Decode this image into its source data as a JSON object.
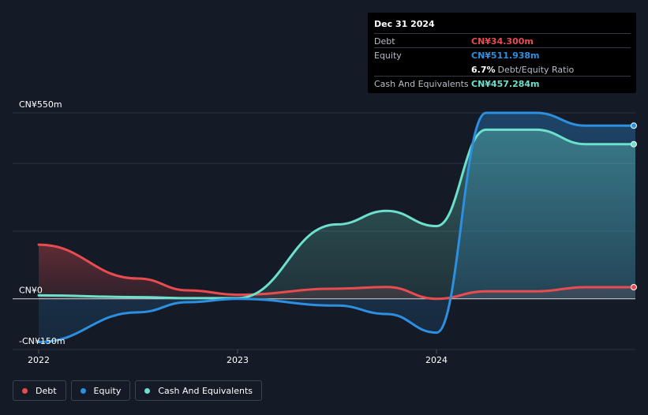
{
  "colors": {
    "background": "#151b26",
    "debt": "#e84c50",
    "equity": "#2d8fe0",
    "cash": "#6ce0cc",
    "grid": "#2a313d",
    "zero": "#ffffff"
  },
  "tooltip": {
    "date": "Dec 31 2024",
    "rows": [
      {
        "label": "Debt",
        "value": "CN¥34.300m",
        "color": "#e84c50"
      },
      {
        "label": "Equity",
        "value": "CN¥511.938m",
        "color": "#2d8fe0"
      },
      {
        "label": "",
        "value": "6.7%",
        "suffix": "Debt/Equity Ratio",
        "color": "#ffffff"
      },
      {
        "label": "Cash And Equivalents",
        "value": "CN¥457.284m",
        "color": "#6ce0cc"
      }
    ]
  },
  "legend": [
    {
      "label": "Debt",
      "color": "#e84c50"
    },
    {
      "label": "Equity",
      "color": "#2d8fe0"
    },
    {
      "label": "Cash And Equivalents",
      "color": "#6ce0cc"
    }
  ],
  "chart_data": {
    "type": "area",
    "ylim": [
      -150,
      550
    ],
    "y_tick_labels": [
      {
        "value": 550,
        "label": "CN¥550m"
      },
      {
        "value": 0,
        "label": "CN¥0"
      },
      {
        "value": -150,
        "label": "-CN¥150m"
      }
    ],
    "x_ticks": [
      {
        "value": 2022.0,
        "label": "2022"
      },
      {
        "value": 2023.0,
        "label": "2023"
      },
      {
        "value": 2024.0,
        "label": "2024"
      }
    ],
    "xlim": [
      2021.9,
      2025.0
    ],
    "grid": true,
    "legend_position": "bottom-left",
    "series": [
      {
        "name": "Debt",
        "key": "debt",
        "points": [
          [
            2022.0,
            160
          ],
          [
            2022.5,
            60
          ],
          [
            2022.75,
            25
          ],
          [
            2023.0,
            12
          ],
          [
            2023.5,
            30
          ],
          [
            2023.75,
            35
          ],
          [
            2024.0,
            0
          ],
          [
            2024.25,
            22
          ],
          [
            2024.5,
            22
          ],
          [
            2024.75,
            34.3
          ],
          [
            2025.0,
            34.3
          ]
        ]
      },
      {
        "name": "Equity",
        "key": "equity",
        "points": [
          [
            2022.0,
            -128
          ],
          [
            2022.5,
            -40
          ],
          [
            2022.75,
            -10
          ],
          [
            2023.0,
            0
          ],
          [
            2023.5,
            -20
          ],
          [
            2023.75,
            -45
          ],
          [
            2024.0,
            -100
          ],
          [
            2024.25,
            550
          ],
          [
            2024.5,
            550
          ],
          [
            2024.75,
            512
          ],
          [
            2025.0,
            512
          ]
        ]
      },
      {
        "name": "Cash And Equivalents",
        "key": "cash",
        "points": [
          [
            2022.0,
            10
          ],
          [
            2022.5,
            5
          ],
          [
            2022.75,
            2
          ],
          [
            2023.0,
            2
          ],
          [
            2023.5,
            220
          ],
          [
            2023.75,
            260
          ],
          [
            2024.0,
            215
          ],
          [
            2024.25,
            500
          ],
          [
            2024.5,
            500
          ],
          [
            2024.75,
            457.3
          ],
          [
            2025.0,
            457.3
          ]
        ]
      }
    ]
  }
}
